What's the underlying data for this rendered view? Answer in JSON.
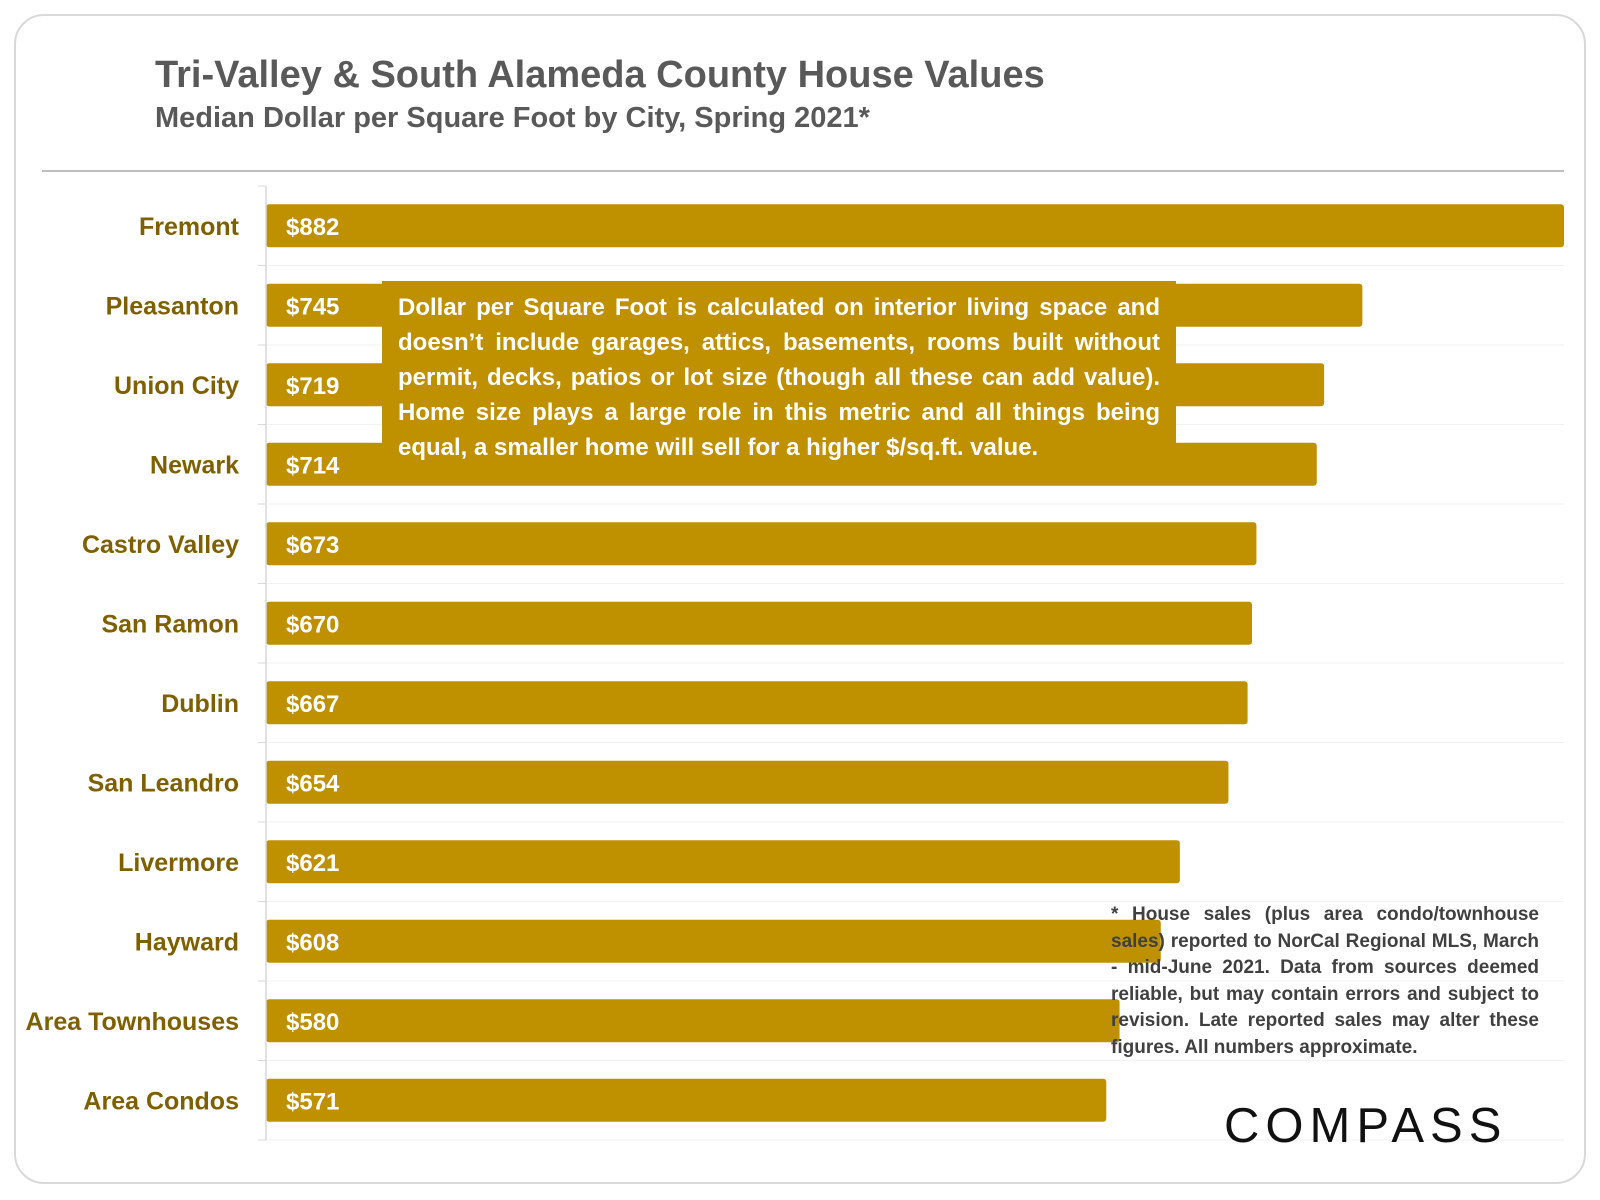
{
  "chart_data": {
    "type": "bar",
    "orientation": "horizontal",
    "title": "Tri-Valley & South Alameda County House Values",
    "subtitle": "Median Dollar per Square Foot by City, Spring 2021*",
    "categories": [
      "Fremont",
      "Pleasanton",
      "Union City",
      "Newark",
      "Castro Valley",
      "San Ramon",
      "Dublin",
      "San Leandro",
      "Livermore",
      "Hayward",
      "Area Townhouses",
      "Area Condos"
    ],
    "values": [
      882,
      745,
      719,
      714,
      673,
      670,
      667,
      654,
      621,
      608,
      580,
      571
    ],
    "value_labels": [
      "$882",
      "$745",
      "$719",
      "$714",
      "$673",
      "$670",
      "$667",
      "$654",
      "$621",
      "$608",
      "$580",
      "$571"
    ],
    "xlabel": "",
    "ylabel": "",
    "grid": true,
    "bar_color": "#bf9000",
    "label_color": "#7f6000"
  },
  "callout": {
    "text": "Dollar per Square Foot is calculated on interior living space and doesn’t include garages, attics, basements, rooms built without permit, decks, patios or lot size (though all these can add value). Home size plays a large role in this metric and all things being equal, a smaller home will sell for a higher $/sq.ft. value."
  },
  "footnote": {
    "text": "* House sales (plus area condo/townhouse sales) reported to NorCal Regional MLS, March - mid-June 2021. Data from sources deemed reliable, but may contain errors and subject to revision. Late reported sales may alter these figures. All numbers approximate."
  },
  "brand": {
    "logo_text": "COMPASS"
  }
}
